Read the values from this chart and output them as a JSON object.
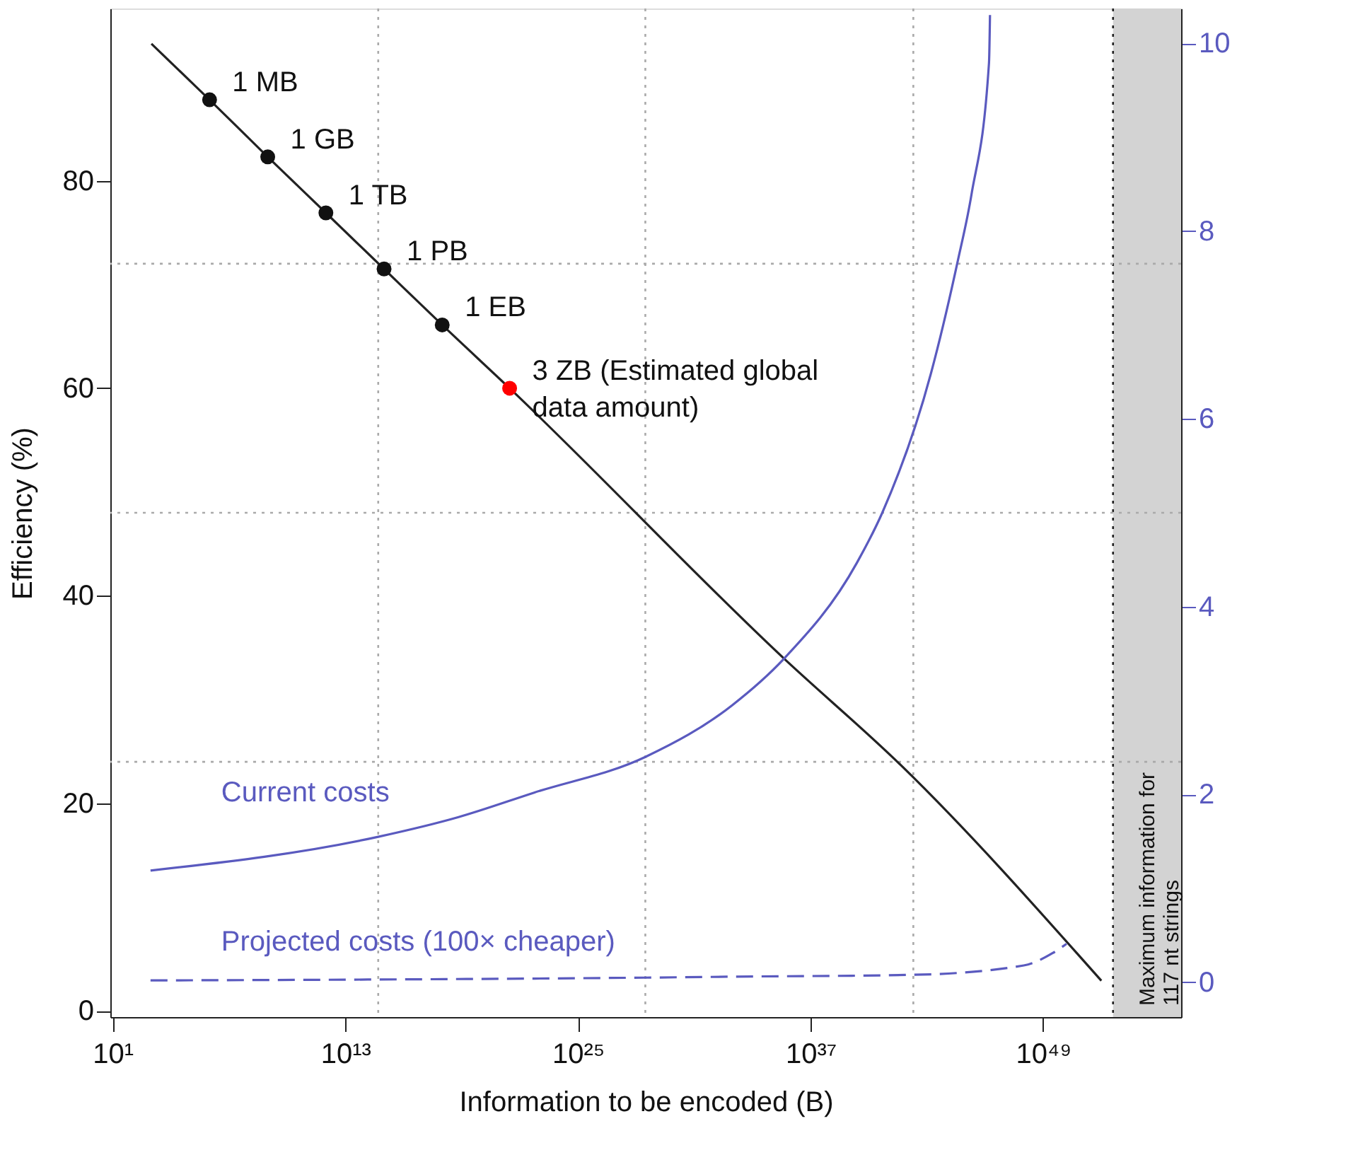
{
  "chart_data": {
    "type": "line",
    "xlabel": "Information to be encoded (B)",
    "ylabel": "Efficiency (%)",
    "log": "x",
    "grid": false,
    "xlim": [
      7.6,
      1.3e+56
    ],
    "xticks": [
      {
        "value": 10,
        "label": "10¹"
      },
      {
        "value": 10000000000000.0,
        "label": "10¹³"
      },
      {
        "value": 1e+25,
        "label": "10²⁵"
      },
      {
        "value": 1e+37,
        "label": "10³⁷"
      },
      {
        "value": 1e+49,
        "label": "10⁴⁹"
      }
    ],
    "ylim": [
      -0.6,
      96.6
    ],
    "yticks": [
      0,
      20,
      40,
      60,
      80
    ],
    "y2lim": [
      -0.37,
      10.37
    ],
    "y2ticks": [
      0,
      2,
      4,
      6,
      8,
      10
    ],
    "series": [
      {
        "type": "line",
        "color": "#222222",
        "x": [
          1000.0,
          1000000.0,
          1000000000.0,
          1000000000000.0,
          1000000000000000.0,
          1e+18,
          3e+21,
          4e+35,
          5e+41,
          1e+52
        ],
        "values": [
          93.2,
          87.8,
          82.3,
          76.9,
          71.5,
          66.1,
          60,
          34.0,
          23.6,
          2.9
        ]
      },
      {
        "type": "scatter",
        "marker": "circle",
        "x": [
          1000000.0,
          1000000000.0,
          1000000000000.0,
          1000000000000000.0,
          1e+18,
          3e+21
        ],
        "values": [
          87.8,
          82.3,
          76.9,
          71.5,
          66.1,
          60
        ],
        "colors": [
          "#111111",
          "#111111",
          "#111111",
          "#111111",
          "#111111",
          "#ff0000"
        ]
      },
      {
        "type": "line",
        "name": "Current costs",
        "axis": "y2",
        "color": "#5a5abf",
        "line_style": "solid",
        "x": [
          900.0,
          500000000000000.0,
          7e+18,
          5.5e+22,
          3e+28,
          9e+32,
          4e+35,
          2.5e+39,
          5e+40,
          1.6e+43,
          4e+44,
          2e+45,
          1.6e+46,
          1.8e+46
        ],
        "values": [
          1.19,
          1.55,
          1.76,
          2.02,
          2.4,
          2.95,
          3.44,
          4.47,
          5.0,
          6.48,
          7.69,
          8.39,
          9.79,
          10.3
        ]
      },
      {
        "type": "line",
        "name": "Projected costs (100× cheaper)",
        "axis": "y2",
        "color": "#5a5abf",
        "line_style": "dashed",
        "x": [
          900.0,
          500000000000000.0,
          3e+28,
          9e+32,
          2e+42,
          1e+48,
          3e+49,
          1.6e+50
        ],
        "values": [
          0.02,
          0.03,
          0.05,
          0.06,
          0.08,
          0.18,
          0.31,
          0.41
        ]
      }
    ],
    "annotations": [
      {
        "text": "1 MB",
        "x": 1000000.0,
        "y": 87.8
      },
      {
        "text": "1 GB",
        "x": 1000000000.0,
        "y": 82.3
      },
      {
        "text": "1 TB",
        "x": 1000000000000.0,
        "y": 76.9
      },
      {
        "text": "1 PB",
        "x": 1000000000000000.0,
        "y": 71.5
      },
      {
        "text": "1 EB",
        "x": 1e+18,
        "y": 66.1
      },
      {
        "text": "3 ZB (Estimated global\ndata amount)",
        "x": 3e+21,
        "y": 60
      }
    ],
    "ref_lines": [
      {
        "axis": "x",
        "value": 500000000000000.0,
        "color": "#aaaaaa",
        "line_style": "dotted"
      },
      {
        "axis": "x",
        "value": 3e+28,
        "color": "#aaaaaa",
        "line_style": "dotted"
      },
      {
        "axis": "x",
        "value": 2e+42,
        "color": "#aaaaaa",
        "line_style": "dotted"
      },
      {
        "axis": "x",
        "value": 4e+52,
        "color": "#222222",
        "line_style": "dotted"
      },
      {
        "axis": "y",
        "value": 24,
        "color": "#aaaaaa",
        "line_style": "dotted"
      },
      {
        "axis": "y",
        "value": 48,
        "color": "#aaaaaa",
        "line_style": "dotted"
      },
      {
        "axis": "y",
        "value": 72,
        "color": "#aaaaaa",
        "line_style": "dotted"
      }
    ],
    "bands": [
      {
        "axis": "x",
        "from": 4e+52,
        "to": 1.3e+56,
        "color": "#d3d3d3",
        "label": "Maximum information for\n117 nt strings"
      }
    ]
  }
}
